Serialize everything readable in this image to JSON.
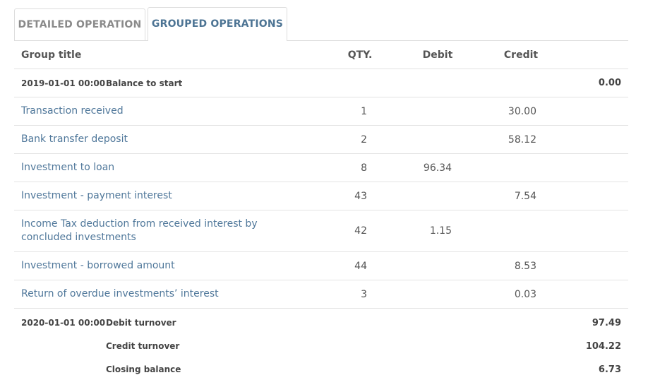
{
  "tabs": [
    {
      "label": "DETAILED OPERATION",
      "active": false
    },
    {
      "label": "GROUPED OPERATIONS",
      "active": true
    }
  ],
  "table": {
    "headers": {
      "title": "Group title",
      "qty": "QTY.",
      "debit": "Debit",
      "credit": "Credit"
    },
    "opening": {
      "date": "2019-01-01 00:00",
      "label": "Balance to start",
      "value": "0.00"
    },
    "rows": [
      {
        "title": "Transaction received",
        "qty": "1",
        "debit": "",
        "credit": "30.00"
      },
      {
        "title": "Bank transfer deposit",
        "qty": "2",
        "debit": "",
        "credit": "58.12"
      },
      {
        "title": "Investment to loan",
        "qty": "8",
        "debit": "96.34",
        "credit": ""
      },
      {
        "title": "Investment - payment interest",
        "qty": "43",
        "debit": "",
        "credit": "7.54"
      },
      {
        "title": "Income Tax deduction from received interest by concluded investments",
        "qty": "42",
        "debit": "1.15",
        "credit": ""
      },
      {
        "title": "Investment - borrowed amount",
        "qty": "44",
        "debit": "",
        "credit": "8.53"
      },
      {
        "title": "Return of overdue investments’ interest",
        "qty": "3",
        "debit": "",
        "credit": "0.03"
      }
    ],
    "summary": {
      "date": "2020-01-01 00:00",
      "debit_turnover_label": "Debit turnover",
      "debit_turnover": "97.49",
      "credit_turnover_label": "Credit turnover",
      "credit_turnover": "104.22",
      "closing_label": "Closing balance",
      "closing": "6.73"
    }
  },
  "colors": {
    "link": "#4f779a",
    "active_tab": "#4d7494",
    "inactive_tab": "#8a8a8a",
    "border": "#e3e3e3"
  }
}
